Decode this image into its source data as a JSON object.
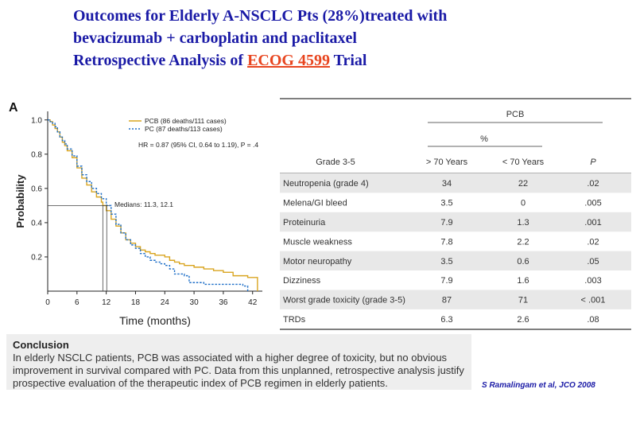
{
  "title": {
    "line1": "Outcomes for Elderly A-NSCLC Pts (28%)treated with",
    "line2": "bevacizumab + carboplatin and paclitaxel",
    "line3_pre": "Retrospective Analysis of ",
    "line3_highlight": "ECOG 4599",
    "line3_post": " Trial"
  },
  "chart_data": {
    "type": "line",
    "panel_label": "A",
    "xlabel": "Time (months)",
    "ylabel": "Probability",
    "xlim": [
      0,
      44
    ],
    "ylim": [
      0,
      1.05
    ],
    "xticks": [
      "0",
      "6",
      "12",
      "18",
      "24",
      "30",
      "36",
      "42"
    ],
    "yticks": [
      "0.2",
      "0.4",
      "0.6",
      "0.8",
      "1.0"
    ],
    "legend": [
      "PCB  (86 deaths/111 cases)",
      "PC  (87 deaths/113 cases)"
    ],
    "annotation_hr": "HR = 0.87 (95% CI, 0.64 to 1.19), P = .4",
    "annotation_median": "Medians: 11.3, 12.1",
    "series": [
      {
        "name": "PCB",
        "color": "#d9a520",
        "x": [
          0,
          0.5,
          1,
          1.5,
          2,
          2.5,
          3,
          3.5,
          4,
          5,
          6,
          7,
          8,
          9,
          10,
          11,
          11.3,
          12,
          13,
          14,
          15,
          16,
          17,
          18,
          19,
          20,
          21,
          22,
          23,
          24,
          25,
          26,
          27,
          28,
          30,
          32,
          34,
          36,
          38,
          40,
          41,
          42,
          42.5,
          43
        ],
        "y": [
          1.0,
          0.99,
          0.97,
          0.95,
          0.93,
          0.9,
          0.87,
          0.85,
          0.82,
          0.78,
          0.72,
          0.66,
          0.62,
          0.58,
          0.55,
          0.52,
          0.5,
          0.47,
          0.42,
          0.38,
          0.34,
          0.3,
          0.28,
          0.26,
          0.24,
          0.23,
          0.22,
          0.21,
          0.21,
          0.2,
          0.18,
          0.17,
          0.16,
          0.15,
          0.14,
          0.13,
          0.12,
          0.11,
          0.09,
          0.09,
          0.08,
          0.08,
          0.08,
          0.0
        ]
      },
      {
        "name": "PC",
        "color": "#1e6fc8",
        "x": [
          0,
          0.5,
          1,
          1.5,
          2,
          2.5,
          3,
          3.5,
          4,
          5,
          6,
          7,
          8,
          9,
          10,
          11,
          12,
          12.1,
          13,
          14,
          15,
          16,
          17,
          18,
          19,
          20,
          21,
          22,
          23,
          24,
          25,
          26,
          28,
          29,
          30,
          32,
          34,
          36,
          40,
          41
        ],
        "y": [
          1.0,
          0.99,
          0.98,
          0.96,
          0.93,
          0.9,
          0.88,
          0.86,
          0.83,
          0.79,
          0.73,
          0.68,
          0.64,
          0.6,
          0.57,
          0.54,
          0.51,
          0.5,
          0.45,
          0.39,
          0.34,
          0.3,
          0.27,
          0.25,
          0.22,
          0.2,
          0.18,
          0.17,
          0.16,
          0.15,
          0.13,
          0.1,
          0.09,
          0.05,
          0.05,
          0.04,
          0.04,
          0.04,
          0.03,
          0.0
        ]
      }
    ]
  },
  "table": {
    "group_header": "PCB",
    "pct_header": "%",
    "row_header": "Grade 3-5",
    "col1": "> 70 Years",
    "col2": "< 70 Years",
    "col3": "P",
    "rows": [
      [
        "Neutropenia (grade 4)",
        "34",
        "22",
        ".02"
      ],
      [
        "Melena/GI bleed",
        "3.5",
        "0",
        ".005"
      ],
      [
        "Proteinuria",
        "7.9",
        "1.3",
        ".001"
      ],
      [
        "Muscle weakness",
        "7.8",
        "2.2",
        ".02"
      ],
      [
        "Motor neuropathy",
        "3.5",
        "0.6",
        ".05"
      ],
      [
        "Dizziness",
        "7.9",
        "1.6",
        ".003"
      ],
      [
        "Worst grade toxicity (grade 3-5)",
        "87",
        "71",
        "< .001"
      ],
      [
        "TRDs",
        "6.3",
        "2.6",
        ".08"
      ]
    ]
  },
  "conclusion": {
    "heading": "Conclusion",
    "text": "In elderly NSCLC patients, PCB was associated with a higher degree of toxicity, but no obvious improvement in survival compared with PC. Data from this unplanned, retrospective analysis justify prospective evaluation of the therapeutic index of PCB regimen in elderly patients."
  },
  "citation": "S Ramalingam et al, JCO 2008"
}
